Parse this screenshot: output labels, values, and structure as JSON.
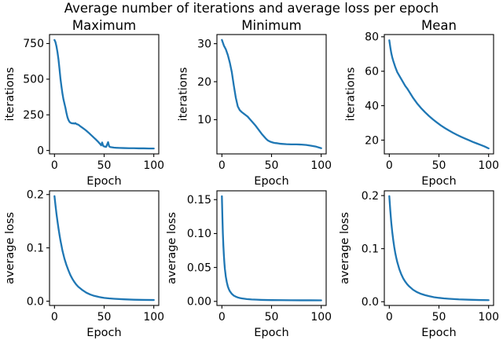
{
  "figure": {
    "suptitle": "Average number of iterations and average loss per epoch",
    "background": "#ffffff",
    "line_color": "#1f77b4",
    "text_color": "#000000",
    "spine_color": "#000000"
  },
  "chart_data": {
    "type": "line",
    "title": "Average number of iterations and average loss per epoch",
    "layout": "2 rows x 3 columns, no legend, no grid",
    "x_axis_shared_label": "Epoch",
    "subplots": [
      {
        "id": "maximum-iterations",
        "title": "Maximum",
        "xlabel": "Epoch",
        "ylabel": "iterations",
        "xlim": [
          -5,
          105
        ],
        "ylim": [
          -24,
          813
        ],
        "x_ticks": [
          0,
          50,
          100
        ],
        "x_tick_labels": [
          "0",
          "50",
          "100"
        ],
        "y_ticks": [
          0,
          250,
          500,
          750
        ],
        "y_tick_labels": [
          "0",
          "250",
          "500",
          "750"
        ],
        "x": [
          0,
          1,
          2,
          3,
          4,
          5,
          6,
          7,
          8,
          9,
          10,
          11,
          12,
          13,
          14,
          15,
          16,
          17,
          18,
          19,
          20,
          21,
          22,
          24,
          26,
          28,
          30,
          32,
          34,
          36,
          38,
          40,
          42,
          44,
          46,
          47,
          48,
          49,
          50,
          52,
          54,
          55,
          56,
          58,
          60,
          62,
          65,
          70,
          75,
          80,
          85,
          90,
          95,
          100
        ],
        "y": [
          775,
          760,
          730,
          690,
          640,
          575,
          505,
          450,
          400,
          360,
          330,
          300,
          265,
          235,
          215,
          202,
          195,
          192,
          190,
          191,
          188,
          192,
          186,
          181,
          170,
          160,
          150,
          139,
          127,
          114,
          101,
          88,
          75,
          61,
          45,
          36,
          56,
          33,
          28,
          25,
          58,
          30,
          24,
          22,
          20,
          19,
          18,
          17,
          16,
          16,
          15,
          15,
          14,
          14
        ]
      },
      {
        "id": "minimum-iterations",
        "title": "Minimum",
        "xlabel": "Epoch",
        "ylabel": "iterations",
        "xlim": [
          -5,
          105
        ],
        "ylim": [
          1.0,
          32.4
        ],
        "x_ticks": [
          0,
          50,
          100
        ],
        "x_tick_labels": [
          "0",
          "50",
          "100"
        ],
        "y_ticks": [
          10,
          20,
          30
        ],
        "y_tick_labels": [
          "10",
          "20",
          "30"
        ],
        "x": [
          0,
          2,
          4,
          6,
          8,
          10,
          12,
          14,
          16,
          18,
          20,
          22,
          24,
          26,
          28,
          30,
          32,
          34,
          36,
          38,
          40,
          42,
          44,
          46,
          48,
          50,
          52,
          54,
          56,
          58,
          60,
          65,
          70,
          75,
          80,
          85,
          90,
          95,
          100
        ],
        "y": [
          31,
          29.5,
          28.5,
          27,
          25,
          22.5,
          19,
          15.8,
          13.5,
          12.5,
          12,
          11.6,
          11.2,
          10.8,
          10.2,
          9.6,
          9,
          8.4,
          7.7,
          7,
          6.3,
          5.7,
          5.1,
          4.6,
          4.3,
          4.1,
          3.95,
          3.85,
          3.8,
          3.7,
          3.65,
          3.55,
          3.5,
          3.5,
          3.45,
          3.35,
          3.15,
          2.9,
          2.5
        ]
      },
      {
        "id": "mean-iterations",
        "title": "Mean",
        "xlabel": "Epoch",
        "ylabel": "iterations",
        "xlim": [
          -5,
          105
        ],
        "ylim": [
          12,
          81.3
        ],
        "x_ticks": [
          0,
          50,
          100
        ],
        "x_tick_labels": [
          "0",
          "50",
          "100"
        ],
        "y_ticks": [
          20,
          40,
          60,
          80
        ],
        "y_tick_labels": [
          "20",
          "40",
          "60",
          "80"
        ],
        "x": [
          0,
          1,
          2,
          3,
          4,
          6,
          8,
          10,
          12,
          14,
          16,
          18,
          20,
          24,
          28,
          32,
          36,
          40,
          44,
          48,
          52,
          56,
          60,
          64,
          68,
          72,
          76,
          80,
          84,
          88,
          92,
          96,
          100
        ],
        "y": [
          78,
          74,
          70.5,
          68,
          66,
          62.5,
          59.5,
          57.5,
          55.5,
          53.5,
          51.5,
          50,
          48.2,
          44.5,
          41.3,
          38.6,
          36.2,
          34,
          32,
          30.2,
          28.5,
          27,
          25.6,
          24.3,
          23.1,
          22,
          21,
          20,
          19,
          18.1,
          17.2,
          16.3,
          15.2
        ]
      },
      {
        "id": "maximum-loss",
        "title": "",
        "xlabel": "Epoch",
        "ylabel": "average loss",
        "xlim": [
          -5,
          105
        ],
        "ylim": [
          -0.008,
          0.207
        ],
        "x_ticks": [
          0,
          50,
          100
        ],
        "x_tick_labels": [
          "0",
          "50",
          "100"
        ],
        "y_ticks": [
          0.0,
          0.1,
          0.2
        ],
        "y_tick_labels": [
          "0.0",
          "0.1",
          "0.2"
        ],
        "x": [
          0,
          1,
          2,
          3,
          4,
          5,
          6,
          8,
          10,
          12,
          14,
          16,
          18,
          20,
          22,
          24,
          26,
          28,
          32,
          36,
          40,
          45,
          50,
          55,
          60,
          70,
          80,
          90,
          100
        ],
        "y": [
          0.197,
          0.18,
          0.164,
          0.15,
          0.137,
          0.125,
          0.114,
          0.095,
          0.08,
          0.068,
          0.058,
          0.049,
          0.042,
          0.036,
          0.031,
          0.027,
          0.024,
          0.021,
          0.016,
          0.0125,
          0.01,
          0.0078,
          0.0062,
          0.0052,
          0.0045,
          0.0035,
          0.0028,
          0.0024,
          0.0022
        ]
      },
      {
        "id": "minimum-loss",
        "title": "",
        "xlabel": "Epoch",
        "ylabel": "average loss",
        "xlim": [
          -5,
          105
        ],
        "ylim": [
          -0.006,
          0.163
        ],
        "x_ticks": [
          0,
          50,
          100
        ],
        "x_tick_labels": [
          "0",
          "50",
          "100"
        ],
        "y_ticks": [
          0.0,
          0.05,
          0.1,
          0.15
        ],
        "y_tick_labels": [
          "0.00",
          "0.05",
          "0.10",
          "0.15"
        ],
        "x": [
          0,
          0.5,
          1,
          1.5,
          2,
          2.5,
          3,
          4,
          5,
          6,
          7,
          8,
          10,
          12,
          14,
          16,
          18,
          20,
          25,
          30,
          35,
          40,
          50,
          60,
          70,
          80,
          90,
          100
        ],
        "y": [
          0.155,
          0.125,
          0.1,
          0.082,
          0.068,
          0.057,
          0.048,
          0.036,
          0.028,
          0.022,
          0.018,
          0.015,
          0.011,
          0.0085,
          0.007,
          0.0058,
          0.005,
          0.0044,
          0.0034,
          0.0028,
          0.0025,
          0.0022,
          0.0019,
          0.0018,
          0.0017,
          0.0016,
          0.0016,
          0.0015
        ]
      },
      {
        "id": "mean-loss",
        "title": "",
        "xlabel": "Epoch",
        "ylabel": "average loss",
        "xlim": [
          -5,
          105
        ],
        "ylim": [
          -0.007,
          0.209
        ],
        "x_ticks": [
          0,
          50,
          100
        ],
        "x_tick_labels": [
          "0",
          "50",
          "100"
        ],
        "y_ticks": [
          0.0,
          0.1,
          0.2
        ],
        "y_tick_labels": [
          "0.0",
          "0.1",
          "0.2"
        ],
        "x": [
          0,
          1,
          2,
          3,
          4,
          5,
          6,
          7,
          8,
          10,
          12,
          14,
          16,
          18,
          20,
          24,
          28,
          32,
          36,
          40,
          45,
          50,
          55,
          60,
          70,
          80,
          90,
          100
        ],
        "y": [
          0.199,
          0.172,
          0.149,
          0.131,
          0.116,
          0.103,
          0.092,
          0.083,
          0.075,
          0.062,
          0.052,
          0.044,
          0.038,
          0.033,
          0.029,
          0.0225,
          0.018,
          0.0148,
          0.0124,
          0.0105,
          0.0086,
          0.0073,
          0.0063,
          0.0056,
          0.0045,
          0.0038,
          0.0033,
          0.003
        ]
      }
    ]
  }
}
